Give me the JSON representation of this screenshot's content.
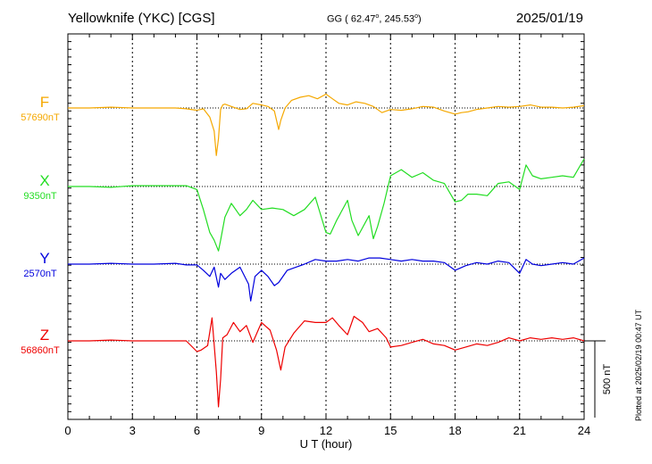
{
  "header": {
    "station": "Yellowknife (YKC)  [CGS]",
    "coords_prefix": "GG ( 62.47",
    "coords_mid": ", 245.53",
    "coords_suffix": ")",
    "date": "2025/01/19"
  },
  "footer_note": "Plotted at 2025/02/19 00:47 UT",
  "chart_data": {
    "type": "line",
    "xlabel": "U T (hour)",
    "xlim": [
      0,
      24
    ],
    "xticks": [
      0,
      3,
      6,
      9,
      12,
      15,
      18,
      21,
      24
    ],
    "grid": true,
    "scale_bar": {
      "label": "500 nT",
      "value_nT": 500
    },
    "series": [
      {
        "name": "F",
        "baseline_label": "57690nT",
        "color": "#f5a800",
        "x": [
          0,
          1,
          2,
          3,
          4,
          5,
          5.5,
          6,
          6.3,
          6.6,
          6.8,
          6.9,
          7.0,
          7.1,
          7.2,
          7.3,
          7.6,
          8.0,
          8.3,
          8.6,
          9.0,
          9.3,
          9.6,
          9.8,
          9.9,
          10.1,
          10.4,
          10.8,
          11.2,
          11.6,
          12.0,
          12.3,
          12.6,
          13.0,
          13.4,
          13.8,
          14.2,
          14.6,
          15.0,
          15.5,
          16.0,
          16.5,
          17.0,
          17.5,
          18.0,
          18.3,
          18.6,
          19.0,
          19.5,
          20.0,
          20.5,
          21.0,
          21.5,
          22.0,
          22.5,
          23.0,
          23.5,
          24.0
        ],
        "y": [
          0,
          0,
          5,
          0,
          0,
          0,
          -5,
          -15,
          -5,
          -60,
          -150,
          -310,
          -200,
          -10,
          20,
          25,
          10,
          -10,
          -5,
          30,
          20,
          10,
          -20,
          -140,
          -80,
          0,
          50,
          70,
          80,
          60,
          90,
          60,
          30,
          20,
          40,
          30,
          10,
          -30,
          -10,
          -15,
          -5,
          10,
          5,
          -20,
          -40,
          -30,
          -25,
          -10,
          0,
          10,
          5,
          10,
          20,
          5,
          5,
          0,
          5,
          15
        ]
      },
      {
        "name": "X",
        "baseline_label": "9350nT",
        "color": "#22dd22",
        "x": [
          0,
          1,
          2,
          3,
          4,
          5,
          5.5,
          6,
          6.3,
          6.6,
          6.8,
          7.0,
          7.1,
          7.3,
          7.6,
          8.0,
          8.3,
          8.6,
          9.0,
          9.5,
          10.0,
          10.5,
          11.0,
          11.5,
          12.0,
          12.2,
          12.5,
          13.0,
          13.2,
          13.5,
          14.0,
          14.2,
          14.4,
          14.7,
          15.0,
          15.5,
          16.0,
          16.5,
          17.0,
          17.5,
          18.0,
          18.3,
          18.6,
          19.0,
          19.5,
          20.0,
          20.5,
          21.0,
          21.3,
          21.6,
          22.0,
          22.5,
          23.0,
          23.5,
          24.0
        ],
        "y": [
          0,
          0,
          -5,
          5,
          5,
          5,
          5,
          -20,
          -150,
          -300,
          -350,
          -420,
          -350,
          -200,
          -110,
          -190,
          -150,
          -90,
          -150,
          -140,
          -150,
          -190,
          -150,
          -70,
          -300,
          -310,
          -220,
          -90,
          -220,
          -320,
          -190,
          -340,
          -260,
          -110,
          70,
          110,
          60,
          90,
          40,
          20,
          -100,
          -90,
          -50,
          -50,
          -60,
          20,
          30,
          -20,
          140,
          70,
          50,
          60,
          70,
          60,
          180
        ]
      },
      {
        "name": "Y",
        "baseline_label": "2570nT",
        "color": "#0000dd",
        "x": [
          0,
          1,
          2,
          3,
          4,
          5,
          5.5,
          6,
          6.3,
          6.6,
          6.8,
          7.0,
          7.1,
          7.3,
          7.6,
          8.0,
          8.4,
          8.5,
          8.7,
          9.0,
          9.3,
          9.6,
          9.8,
          10.2,
          10.6,
          11.0,
          11.5,
          12.0,
          12.5,
          13.0,
          13.5,
          14.0,
          14.5,
          15.0,
          15.5,
          16.0,
          16.5,
          17.0,
          17.5,
          18.0,
          18.5,
          19.0,
          19.5,
          20.0,
          20.5,
          21.0,
          21.3,
          21.6,
          22.0,
          22.5,
          23.0,
          23.5,
          24.0
        ],
        "y": [
          0,
          0,
          5,
          0,
          0,
          5,
          -5,
          -5,
          -40,
          -80,
          -20,
          -150,
          -60,
          -100,
          -60,
          -20,
          -130,
          -240,
          -80,
          -40,
          -80,
          -140,
          -120,
          -40,
          -20,
          0,
          30,
          20,
          20,
          30,
          20,
          40,
          40,
          30,
          20,
          30,
          20,
          20,
          10,
          -40,
          -10,
          10,
          0,
          20,
          10,
          -60,
          30,
          0,
          -10,
          0,
          10,
          0,
          40
        ]
      },
      {
        "name": "Z",
        "baseline_label": "56860nT",
        "color": "#ee0000",
        "x": [
          0,
          1,
          2,
          3,
          4,
          5,
          5.5,
          6,
          6.2,
          6.5,
          6.7,
          6.9,
          7.0,
          7.1,
          7.2,
          7.4,
          7.7,
          8.0,
          8.3,
          8.6,
          9.0,
          9.4,
          9.7,
          9.9,
          10.1,
          10.5,
          11.0,
          11.5,
          12.0,
          12.3,
          12.6,
          13.0,
          13.3,
          13.7,
          14.0,
          14.4,
          14.8,
          15.0,
          15.5,
          16.0,
          16.5,
          17.0,
          17.5,
          18.0,
          18.5,
          19.0,
          19.5,
          20.0,
          20.5,
          21.0,
          21.5,
          22.0,
          22.5,
          23.0,
          23.5,
          24.0
        ],
        "y": [
          0,
          0,
          5,
          0,
          0,
          0,
          0,
          -70,
          -60,
          -30,
          150,
          -200,
          -430,
          -250,
          20,
          40,
          120,
          60,
          100,
          -10,
          120,
          70,
          -60,
          -190,
          -40,
          50,
          130,
          120,
          120,
          150,
          100,
          40,
          160,
          120,
          60,
          80,
          20,
          -40,
          -30,
          -10,
          10,
          -20,
          -30,
          -60,
          -40,
          -20,
          -30,
          -10,
          20,
          0,
          20,
          10,
          20,
          10,
          20,
          0
        ]
      }
    ]
  }
}
